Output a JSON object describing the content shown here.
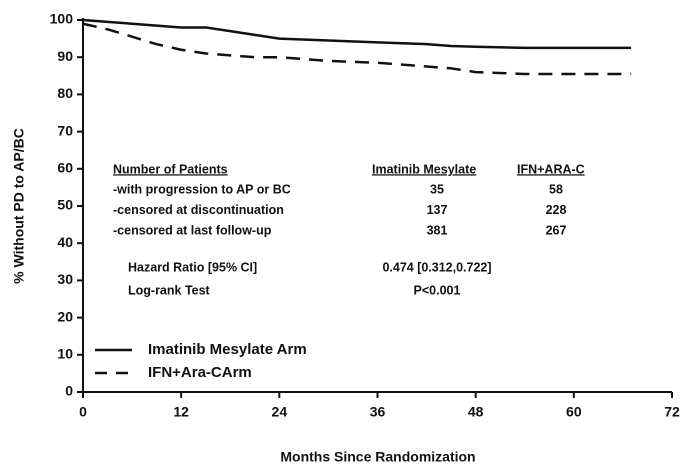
{
  "chart_data": {
    "type": "line",
    "xlabel": "Months Since Randomization",
    "ylabel": "% Without PD to AP/BC",
    "x": [
      0,
      3,
      6,
      9,
      12,
      15,
      18,
      21,
      24,
      30,
      36,
      42,
      45,
      48,
      54,
      60,
      67
    ],
    "series": [
      {
        "name": "Imatinib Mesylate Arm",
        "color": "#111111",
        "style": "solid",
        "values": [
          100,
          99.5,
          99,
          98.5,
          98,
          98,
          97,
          96,
          95,
          94.5,
          94,
          93.5,
          93,
          92.8,
          92.5,
          92.5,
          92.5
        ]
      },
      {
        "name": "IFN+Ara-CArm",
        "color": "#111111",
        "style": "dashed",
        "values": [
          99,
          97.5,
          95.5,
          93.5,
          92,
          91,
          90.5,
          90,
          90,
          89,
          88.5,
          87.5,
          87,
          86,
          85.5,
          85.5,
          85.5
        ]
      }
    ],
    "xlim": [
      0,
      72
    ],
    "xticks": [
      0,
      12,
      24,
      36,
      48,
      60,
      72
    ],
    "ylim": [
      0,
      100
    ],
    "yticks": [
      0,
      10,
      20,
      30,
      40,
      50,
      60,
      70,
      80,
      90,
      100
    ],
    "legend": "lower left",
    "annotation_table": {
      "header": [
        "Number of Patients",
        "Imatinib Mesylate",
        "IFN+ARA-C"
      ],
      "rows": [
        [
          "-with progression to AP or BC",
          35,
          58
        ],
        [
          "-censored at discontinuation",
          137,
          228
        ],
        [
          "-censored at last follow-up",
          381,
          267
        ]
      ],
      "stats": [
        [
          "Hazard Ratio [95% CI]",
          "0.474 [0.312,0.722]"
        ],
        [
          "Log-rank Test",
          "P<0.001"
        ]
      ]
    }
  }
}
